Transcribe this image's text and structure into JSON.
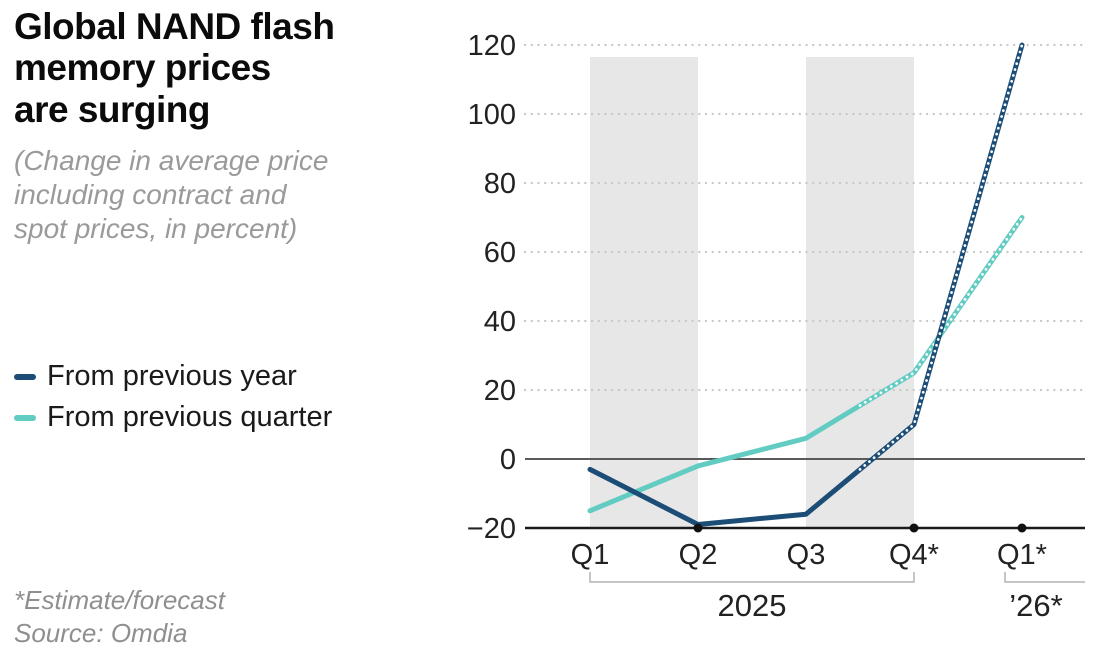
{
  "header": {
    "title_lines": [
      "Global NAND flash",
      "memory prices",
      "are surging"
    ],
    "subtitle_lines": [
      "(Change in average price",
      "including contract and",
      "spot prices, in percent)"
    ]
  },
  "legend": [
    {
      "label": "From previous year",
      "color": "#1c4d77"
    },
    {
      "label": "From previous quarter",
      "color": "#62ccc2"
    }
  ],
  "footer": {
    "note": "*Estimate/forecast",
    "source": "Source: Omdia"
  },
  "colors": {
    "band": "#e7e7e7",
    "gridline": "#c8c8c8",
    "zero_line": "#5a5a5a",
    "baseline": "#1a1a1a",
    "axis_text": "#222222",
    "bracket": "#b4b4b4"
  },
  "chart_data": {
    "type": "line",
    "title": "Global NAND flash memory prices are surging",
    "subtitle": "(Change in average price including contract and spot prices, in percent)",
    "categories": [
      "Q1",
      "Q2",
      "Q3",
      "Q4*",
      "Q1*"
    ],
    "series": [
      {
        "name": "From previous year",
        "color": "#1c4d77",
        "values": [
          -3,
          -19,
          -16,
          10,
          120
        ]
      },
      {
        "name": "From previous quarter",
        "color": "#62ccc2",
        "values": [
          -15,
          -2,
          6,
          25,
          70
        ]
      }
    ],
    "ylim": [
      -20,
      120
    ],
    "yticks": [
      -20,
      0,
      20,
      40,
      60,
      80,
      100,
      120
    ],
    "grid": "horizontal-dotted",
    "legend_position": "left",
    "forecast_start_index": 3,
    "forecast_style": "beaded-dotted",
    "shaded_bands": [
      [
        0,
        1
      ],
      [
        2,
        3
      ]
    ],
    "axis_dots_at": [
      1,
      3,
      4
    ],
    "year_groups": [
      {
        "label": "2025",
        "from": 0,
        "to": 3
      },
      {
        "label": "’26*",
        "from": 4,
        "to": 4
      }
    ]
  }
}
